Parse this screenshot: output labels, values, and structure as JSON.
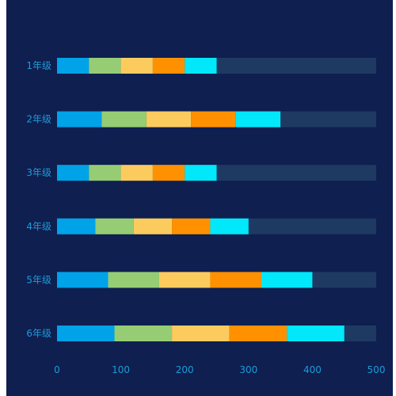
{
  "chart_data": {
    "type": "bar",
    "orientation": "horizontal",
    "stacked": true,
    "categories": [
      "1年级",
      "2年级",
      "3年级",
      "4年级",
      "5年级",
      "6年级"
    ],
    "series": [
      {
        "color": "#00a2e8",
        "values": [
          50,
          70,
          50,
          60,
          80,
          90
        ]
      },
      {
        "color": "#96cd74",
        "values": [
          50,
          70,
          50,
          60,
          80,
          90
        ]
      },
      {
        "color": "#fccb5e",
        "values": [
          50,
          70,
          50,
          60,
          80,
          90
        ]
      },
      {
        "color": "#ff9100",
        "values": [
          50,
          70,
          50,
          60,
          80,
          90
        ]
      },
      {
        "color": "#00e8fa",
        "values": [
          50,
          70,
          50,
          60,
          80,
          90
        ]
      }
    ],
    "background_bar": {
      "color": "#1e3a63",
      "value": 500
    },
    "xlim": [
      0,
      500
    ],
    "xticks": [
      0,
      100,
      200,
      300,
      400,
      500
    ],
    "grid": false,
    "title": "",
    "xlabel": "",
    "ylabel": ""
  },
  "colors": {
    "background": "#0e1f50",
    "axis_text": "#1e9bd7"
  }
}
